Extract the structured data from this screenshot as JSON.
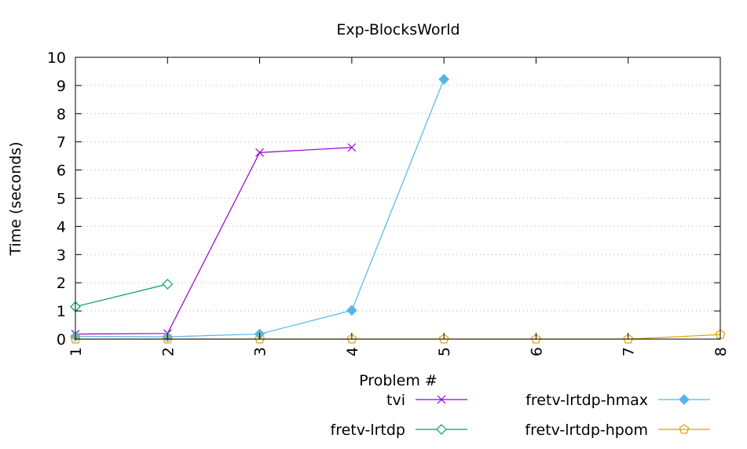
{
  "chart_data": {
    "type": "line",
    "title": "Exp-BlocksWorld",
    "xlabel": "Problem #",
    "ylabel": "Time (seconds)",
    "categories": [
      "1",
      "2",
      "3",
      "4",
      "5",
      "6",
      "7",
      "8"
    ],
    "xlim": [
      1,
      8
    ],
    "ylim": [
      0,
      10
    ],
    "yticks": [
      "0",
      "1",
      "2",
      "3",
      "4",
      "5",
      "6",
      "7",
      "8",
      "9",
      "10"
    ],
    "grid": "horizontal dotted",
    "legend_position": "bottom",
    "series": [
      {
        "name": "tvi",
        "color": "#9400d3",
        "marker": "x",
        "x": [
          1,
          2,
          3,
          4
        ],
        "y": [
          0.18,
          0.2,
          6.62,
          6.8
        ]
      },
      {
        "name": "fretv-lrtdp",
        "color": "#009e73",
        "marker": "diamond-open",
        "x": [
          1,
          2
        ],
        "y": [
          1.15,
          1.95
        ]
      },
      {
        "name": "fretv-lrtdp-hmax",
        "color": "#56b4e9",
        "marker": "diamond-filled",
        "x": [
          1,
          2,
          3,
          4,
          5
        ],
        "y": [
          0.1,
          0.08,
          0.18,
          1.02,
          9.22
        ]
      },
      {
        "name": "fretv-lrtdp-hpom",
        "color": "#e69f00",
        "marker": "pentagon-open",
        "x": [
          1,
          2,
          3,
          4,
          5,
          6,
          7,
          8
        ],
        "y": [
          0.0,
          0.0,
          0.0,
          0.0,
          0.0,
          0.0,
          0.0,
          0.16
        ]
      }
    ]
  }
}
